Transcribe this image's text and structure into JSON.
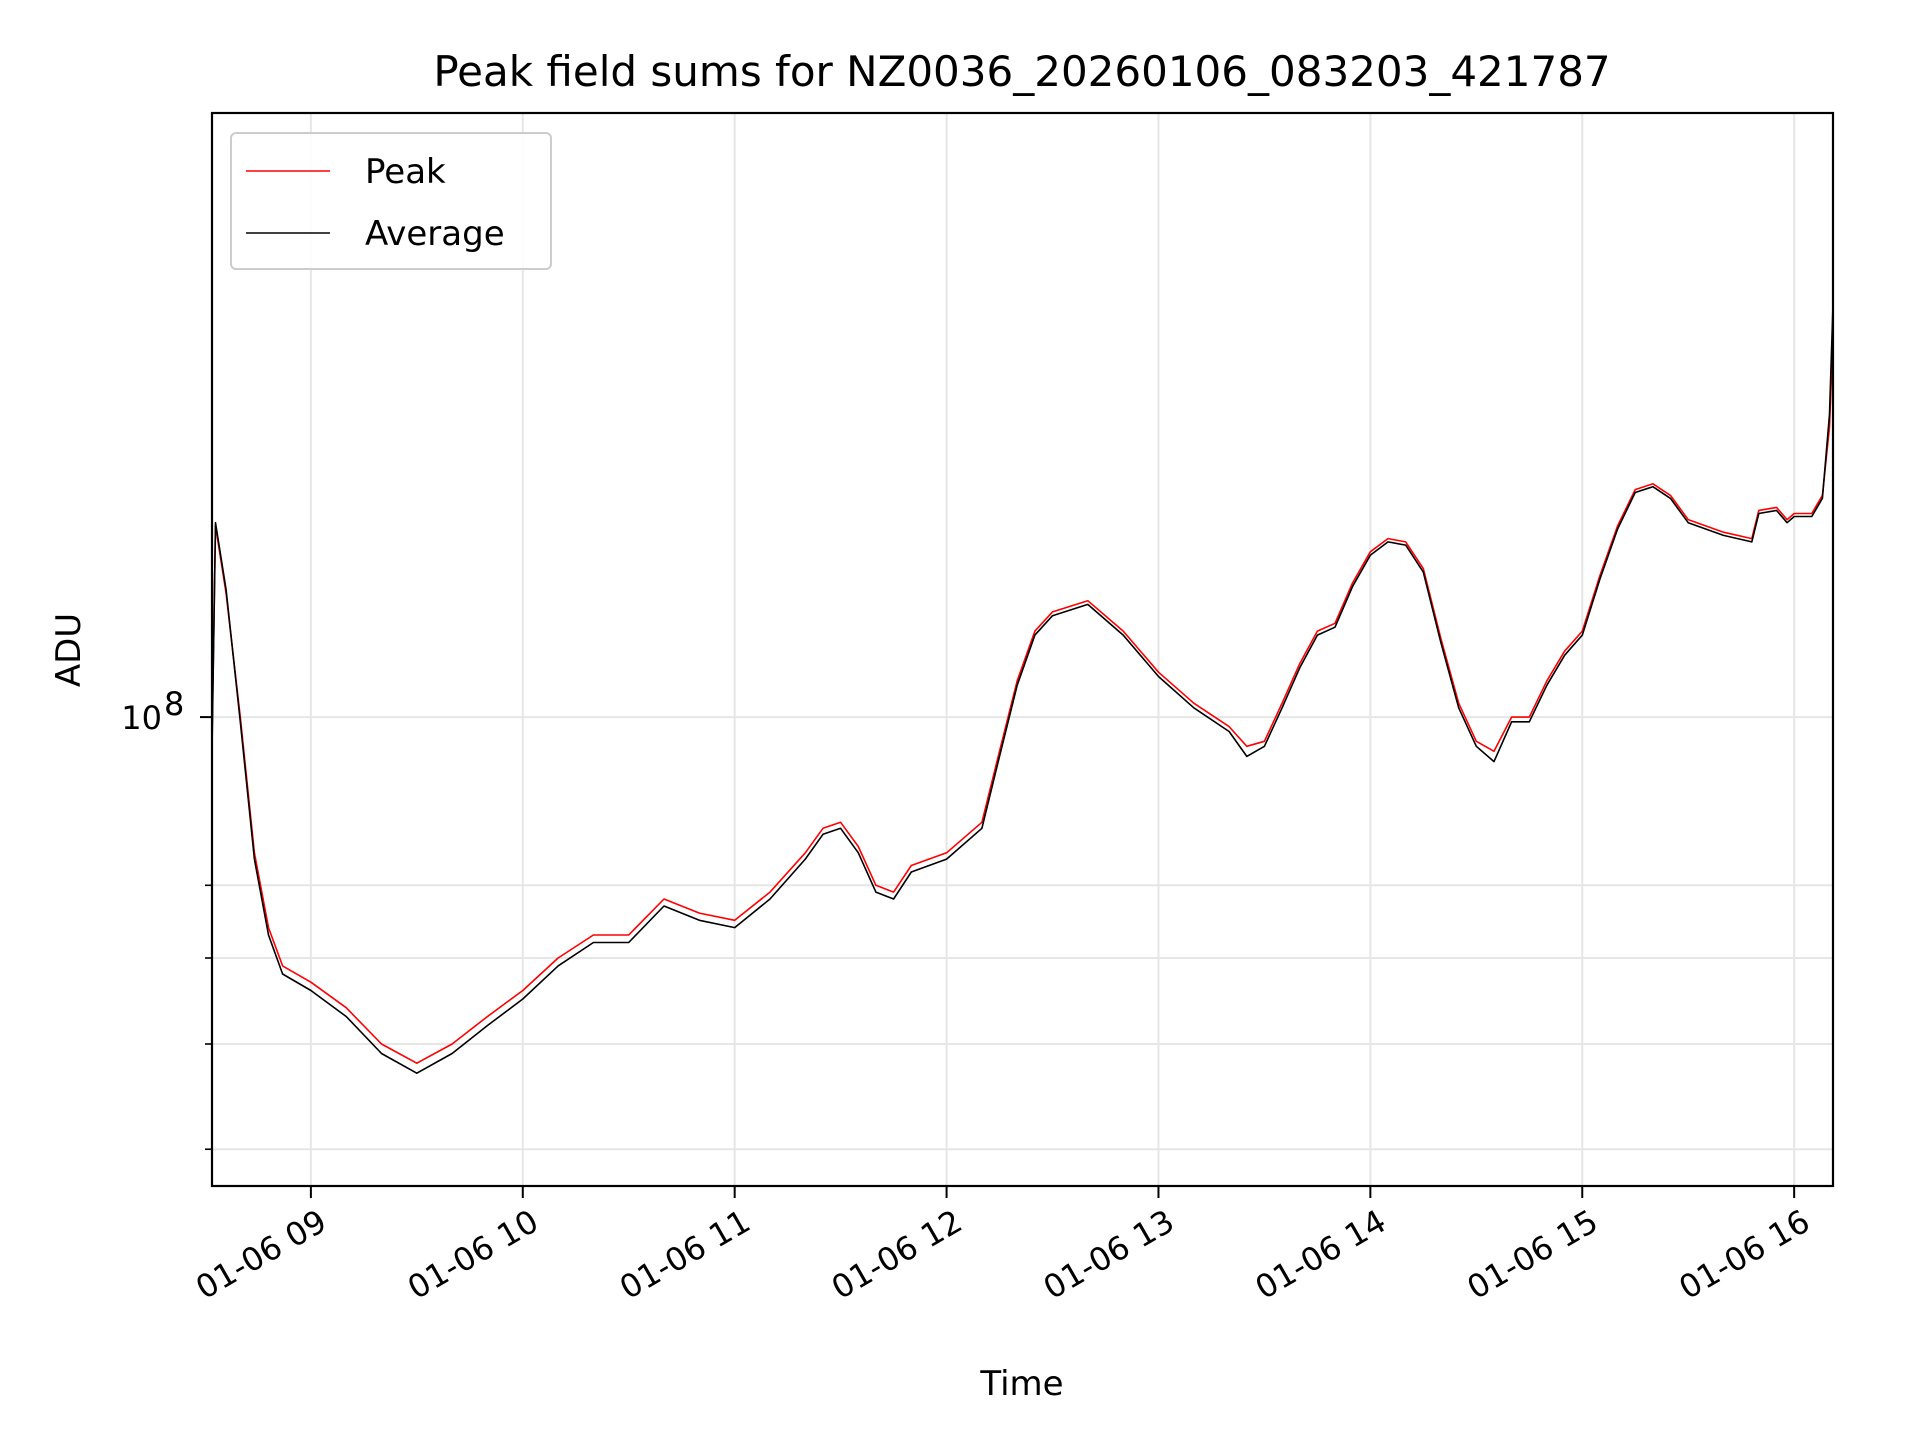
{
  "chart_data": {
    "type": "line",
    "title": "Peak field sums for NZ0036_20260106_083203_421787",
    "xlabel": "Time",
    "ylabel": "ADU",
    "x_scale": "time",
    "y_scale": "log",
    "grid": true,
    "legend_position": "top-left",
    "xlim": [
      "01-06 08:32",
      "01-06 16:11"
    ],
    "ylim": [
      37000000,
      360000000
    ],
    "x_ticks": [
      "01-06 09",
      "01-06 10",
      "01-06 11",
      "01-06 12",
      "01-06 13",
      "01-06 14",
      "01-06 15",
      "01-06 16"
    ],
    "y_major_ticks": [
      {
        "value": 100000000,
        "label_base": "10",
        "label_exp": "8"
      }
    ],
    "y_minor_ticks": [
      40000000,
      50000000,
      60000000,
      70000000
    ],
    "series": [
      {
        "name": "Peak",
        "color": "#ff0000",
        "points": [
          [
            "01-06 08:32",
            95000000
          ],
          [
            "01-06 08:33",
            150000000
          ],
          [
            "01-06 08:36",
            130000000
          ],
          [
            "01-06 08:40",
            100000000
          ],
          [
            "01-06 08:44",
            75000000
          ],
          [
            "01-06 08:48",
            64000000
          ],
          [
            "01-06 08:52",
            59000000
          ],
          [
            "01-06 09:00",
            57000000
          ],
          [
            "01-06 09:10",
            54000000
          ],
          [
            "01-06 09:20",
            50000000
          ],
          [
            "01-06 09:30",
            48000000
          ],
          [
            "01-06 09:40",
            50000000
          ],
          [
            "01-06 09:50",
            53000000
          ],
          [
            "01-06 10:00",
            56000000
          ],
          [
            "01-06 10:10",
            60000000
          ],
          [
            "01-06 10:20",
            63000000
          ],
          [
            "01-06 10:30",
            63000000
          ],
          [
            "01-06 10:40",
            68000000
          ],
          [
            "01-06 10:50",
            66000000
          ],
          [
            "01-06 11:00",
            65000000
          ],
          [
            "01-06 11:10",
            69000000
          ],
          [
            "01-06 11:20",
            75000000
          ],
          [
            "01-06 11:25",
            79000000
          ],
          [
            "01-06 11:30",
            80000000
          ],
          [
            "01-06 11:35",
            76000000
          ],
          [
            "01-06 11:40",
            70000000
          ],
          [
            "01-06 11:45",
            69000000
          ],
          [
            "01-06 11:50",
            73000000
          ],
          [
            "01-06 12:00",
            75000000
          ],
          [
            "01-06 12:10",
            80000000
          ],
          [
            "01-06 12:15",
            93000000
          ],
          [
            "01-06 12:20",
            108000000
          ],
          [
            "01-06 12:25",
            120000000
          ],
          [
            "01-06 12:30",
            125000000
          ],
          [
            "01-06 12:40",
            128000000
          ],
          [
            "01-06 12:50",
            120000000
          ],
          [
            "01-06 13:00",
            110000000
          ],
          [
            "01-06 13:10",
            103000000
          ],
          [
            "01-06 13:20",
            98000000
          ],
          [
            "01-06 13:25",
            94000000
          ],
          [
            "01-06 13:30",
            95000000
          ],
          [
            "01-06 13:35",
            103000000
          ],
          [
            "01-06 13:40",
            112000000
          ],
          [
            "01-06 13:45",
            120000000
          ],
          [
            "01-06 13:50",
            122000000
          ],
          [
            "01-06 13:55",
            133000000
          ],
          [
            "01-06 14:00",
            142000000
          ],
          [
            "01-06 14:05",
            146000000
          ],
          [
            "01-06 14:10",
            145000000
          ],
          [
            "01-06 14:15",
            137000000
          ],
          [
            "01-06 14:20",
            118000000
          ],
          [
            "01-06 14:25",
            103000000
          ],
          [
            "01-06 14:30",
            95000000
          ],
          [
            "01-06 14:35",
            93000000
          ],
          [
            "01-06 14:40",
            100000000
          ],
          [
            "01-06 14:45",
            100000000
          ],
          [
            "01-06 14:50",
            108000000
          ],
          [
            "01-06 14:55",
            115000000
          ],
          [
            "01-06 15:00",
            120000000
          ],
          [
            "01-06 15:05",
            135000000
          ],
          [
            "01-06 15:10",
            150000000
          ],
          [
            "01-06 15:15",
            162000000
          ],
          [
            "01-06 15:20",
            164000000
          ],
          [
            "01-06 15:25",
            160000000
          ],
          [
            "01-06 15:30",
            152000000
          ],
          [
            "01-06 15:40",
            148000000
          ],
          [
            "01-06 15:48",
            146000000
          ],
          [
            "01-06 15:50",
            155000000
          ],
          [
            "01-06 15:55",
            156000000
          ],
          [
            "01-06 15:58",
            152000000
          ],
          [
            "01-06 16:00",
            154000000
          ],
          [
            "01-06 16:05",
            154000000
          ],
          [
            "01-06 16:08",
            160000000
          ],
          [
            "01-06 16:10",
            185000000
          ],
          [
            "01-06 16:11",
            225000000
          ]
        ]
      },
      {
        "name": "Average",
        "color": "#000000",
        "points": [
          [
            "01-06 08:32",
            93000000
          ],
          [
            "01-06 08:33",
            151000000
          ],
          [
            "01-06 08:36",
            131000000
          ],
          [
            "01-06 08:40",
            99000000
          ],
          [
            "01-06 08:44",
            74000000
          ],
          [
            "01-06 08:48",
            63000000
          ],
          [
            "01-06 08:52",
            58000000
          ],
          [
            "01-06 09:00",
            56000000
          ],
          [
            "01-06 09:10",
            53000000
          ],
          [
            "01-06 09:20",
            49000000
          ],
          [
            "01-06 09:30",
            47000000
          ],
          [
            "01-06 09:40",
            49000000
          ],
          [
            "01-06 09:50",
            52000000
          ],
          [
            "01-06 10:00",
            55000000
          ],
          [
            "01-06 10:10",
            59000000
          ],
          [
            "01-06 10:20",
            62000000
          ],
          [
            "01-06 10:30",
            62000000
          ],
          [
            "01-06 10:40",
            67000000
          ],
          [
            "01-06 10:50",
            65000000
          ],
          [
            "01-06 11:00",
            64000000
          ],
          [
            "01-06 11:10",
            68000000
          ],
          [
            "01-06 11:20",
            74000000
          ],
          [
            "01-06 11:25",
            78000000
          ],
          [
            "01-06 11:30",
            79000000
          ],
          [
            "01-06 11:35",
            75000000
          ],
          [
            "01-06 11:40",
            69000000
          ],
          [
            "01-06 11:45",
            68000000
          ],
          [
            "01-06 11:50",
            72000000
          ],
          [
            "01-06 12:00",
            74000000
          ],
          [
            "01-06 12:10",
            79000000
          ],
          [
            "01-06 12:15",
            92000000
          ],
          [
            "01-06 12:20",
            107000000
          ],
          [
            "01-06 12:25",
            119000000
          ],
          [
            "01-06 12:30",
            124000000
          ],
          [
            "01-06 12:40",
            127000000
          ],
          [
            "01-06 12:50",
            119000000
          ],
          [
            "01-06 13:00",
            109000000
          ],
          [
            "01-06 13:10",
            102000000
          ],
          [
            "01-06 13:20",
            97000000
          ],
          [
            "01-06 13:25",
            92000000
          ],
          [
            "01-06 13:30",
            94000000
          ],
          [
            "01-06 13:35",
            102000000
          ],
          [
            "01-06 13:40",
            111000000
          ],
          [
            "01-06 13:45",
            119000000
          ],
          [
            "01-06 13:50",
            121000000
          ],
          [
            "01-06 13:55",
            132000000
          ],
          [
            "01-06 14:00",
            141000000
          ],
          [
            "01-06 14:05",
            145000000
          ],
          [
            "01-06 14:10",
            144000000
          ],
          [
            "01-06 14:15",
            136000000
          ],
          [
            "01-06 14:20",
            117000000
          ],
          [
            "01-06 14:25",
            102000000
          ],
          [
            "01-06 14:30",
            94000000
          ],
          [
            "01-06 14:35",
            91000000
          ],
          [
            "01-06 14:40",
            99000000
          ],
          [
            "01-06 14:45",
            99000000
          ],
          [
            "01-06 14:50",
            107000000
          ],
          [
            "01-06 14:55",
            114000000
          ],
          [
            "01-06 15:00",
            119000000
          ],
          [
            "01-06 15:05",
            134000000
          ],
          [
            "01-06 15:10",
            149000000
          ],
          [
            "01-06 15:15",
            161000000
          ],
          [
            "01-06 15:20",
            163000000
          ],
          [
            "01-06 15:25",
            159000000
          ],
          [
            "01-06 15:30",
            151000000
          ],
          [
            "01-06 15:40",
            147000000
          ],
          [
            "01-06 15:48",
            145000000
          ],
          [
            "01-06 15:50",
            154000000
          ],
          [
            "01-06 15:55",
            155000000
          ],
          [
            "01-06 15:58",
            151000000
          ],
          [
            "01-06 16:00",
            153000000
          ],
          [
            "01-06 16:05",
            153000000
          ],
          [
            "01-06 16:08",
            159000000
          ],
          [
            "01-06 16:10",
            190000000
          ],
          [
            "01-06 16:11",
            240000000
          ]
        ]
      }
    ]
  }
}
